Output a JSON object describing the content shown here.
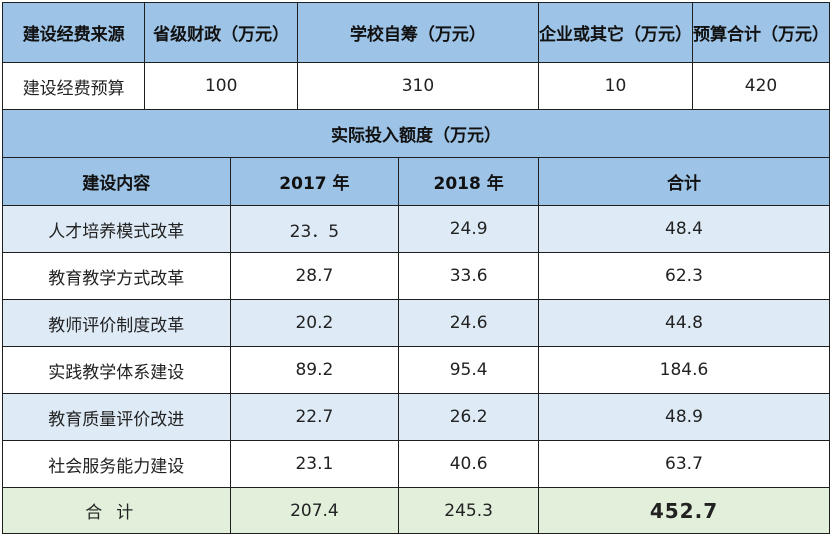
{
  "budget_table": {
    "headers": [
      "建设经费来源",
      "省级财政（万元）",
      "学校自筹（万元）",
      "企业或其它（万元）",
      "预算合计（万元）"
    ],
    "row": {
      "label": "建设经费预算",
      "provincial": "100",
      "school": "310",
      "enterprise": "10",
      "total": "420"
    }
  },
  "actual_table": {
    "section_title": "实际投入额度（万元）",
    "headers": [
      "建设内容",
      "2017 年",
      "2018 年",
      "合计"
    ],
    "rows": [
      {
        "item": "人才培养模式改革",
        "y2017": "23．5",
        "y2018": "24.9",
        "total": "48.4"
      },
      {
        "item": "教育教学方式改革",
        "y2017": "28.7",
        "y2018": "33.6",
        "total": "62.3"
      },
      {
        "item": "教师评价制度改革",
        "y2017": "20.2",
        "y2018": "24.6",
        "total": "44.8"
      },
      {
        "item": "实践教学体系建设",
        "y2017": "89.2",
        "y2018": "95.4",
        "total": "184.6"
      },
      {
        "item": "教育质量评价改进",
        "y2017": "22.7",
        "y2018": "26.2",
        "total": "48.9"
      },
      {
        "item": "社会服务能力建设",
        "y2017": "23.1",
        "y2018": "40.6",
        "total": "63.7"
      }
    ],
    "summary": {
      "label": "合计",
      "y2017": "207.4",
      "y2018": "245.3",
      "total": "452.7"
    }
  },
  "colors": {
    "header": "#9dc3e6",
    "light_row": "#deebf7",
    "summary_row": "#e2efda"
  }
}
